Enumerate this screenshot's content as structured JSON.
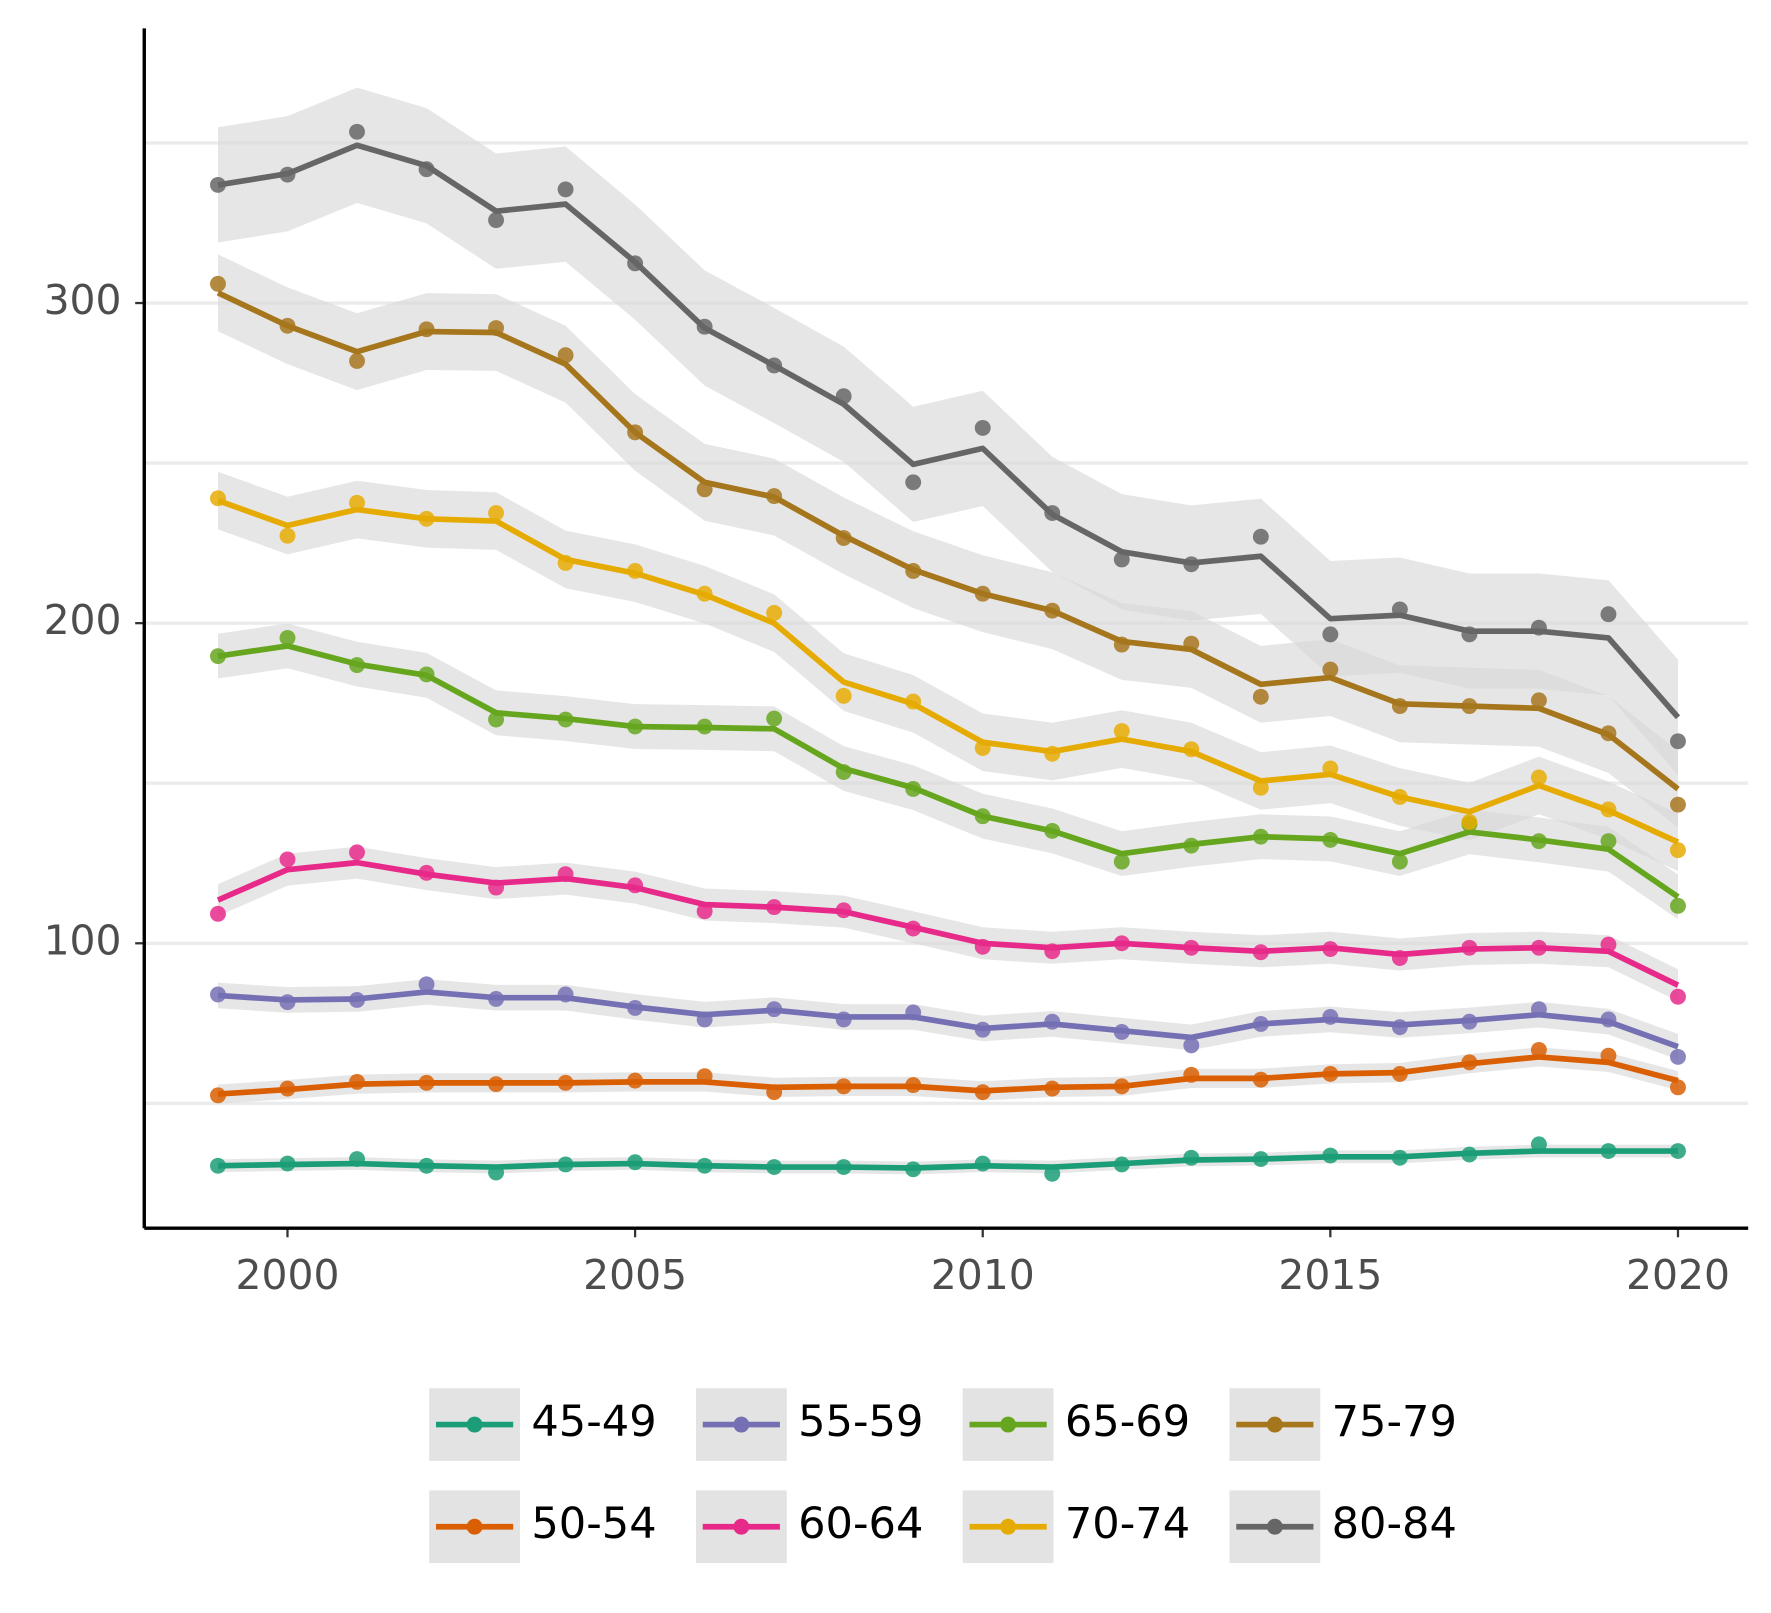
{
  "chart_data": {
    "type": "line",
    "x": [
      1999,
      2000,
      2001,
      2002,
      2003,
      2004,
      2005,
      2006,
      2007,
      2008,
      2009,
      2010,
      2011,
      2012,
      2013,
      2014,
      2015,
      2016,
      2017,
      2018,
      2019,
      2020
    ],
    "xlim": [
      1997.94,
      2021.01
    ],
    "xticks": [
      2000,
      2005,
      2010,
      2015,
      2020
    ],
    "ylim": [
      11,
      385.8
    ],
    "yticks": [
      100,
      200,
      300
    ],
    "yminorticks": [
      50,
      150,
      250,
      350
    ],
    "grid": true,
    "legend": "bottom",
    "series": [
      {
        "name": "45-49",
        "color": "#1b9e77",
        "se": 2,
        "values": [
          30.5,
          30.9,
          31.2,
          30.5,
          30.1,
          30.9,
          31.2,
          30.5,
          30.1,
          30.1,
          29.8,
          30.5,
          30.1,
          31.2,
          32.3,
          32.6,
          33.3,
          33.3,
          34.4,
          35.1,
          35.1,
          35.1
        ],
        "points": [
          30.5,
          31.2,
          32.6,
          30.5,
          28.4,
          30.9,
          31.6,
          30.5,
          30.1,
          30.1,
          29.4,
          31.2,
          28.0,
          30.9,
          33.0,
          32.6,
          33.7,
          33.0,
          34.0,
          37.2,
          35.1,
          35.1
        ]
      },
      {
        "name": "50-54",
        "color": "#d95f02",
        "se": 3,
        "values": [
          52.9,
          54.3,
          56.0,
          56.4,
          56.4,
          56.4,
          56.7,
          56.7,
          55.0,
          55.3,
          55.3,
          53.9,
          55.0,
          55.3,
          57.8,
          57.8,
          59.2,
          59.6,
          62.4,
          64.5,
          62.8,
          57.1
        ],
        "points": [
          52.5,
          54.6,
          56.7,
          56.4,
          56.0,
          56.4,
          57.1,
          58.5,
          53.5,
          55.3,
          55.7,
          53.5,
          54.6,
          55.3,
          58.9,
          57.4,
          59.2,
          59.2,
          62.8,
          66.7,
          64.9,
          55.0
        ]
      },
      {
        "name": "55-59",
        "color": "#7570b3",
        "se": 4,
        "values": [
          83.7,
          82.3,
          82.6,
          84.8,
          83.0,
          83.0,
          80.1,
          77.7,
          79.1,
          77.0,
          77.0,
          73.4,
          74.8,
          72.7,
          70.6,
          74.8,
          76.2,
          74.5,
          75.9,
          77.7,
          75.5,
          67.7
        ],
        "points": [
          84.0,
          81.6,
          82.3,
          87.2,
          82.6,
          84.0,
          79.8,
          76.2,
          79.4,
          76.2,
          78.4,
          73.0,
          75.5,
          72.3,
          68.1,
          74.8,
          77.0,
          73.8,
          75.5,
          79.4,
          76.2,
          64.5
        ]
      },
      {
        "name": "60-64",
        "color": "#e7298a",
        "se": 5,
        "values": [
          113.5,
          123.0,
          125.2,
          121.6,
          118.8,
          120.2,
          117.4,
          112.1,
          111.3,
          109.9,
          105.0,
          100.0,
          98.6,
          100.0,
          98.6,
          97.5,
          98.6,
          96.5,
          98.2,
          98.6,
          97.5,
          86.9
        ],
        "points": [
          109.2,
          126.2,
          128.4,
          122.0,
          117.4,
          121.6,
          118.1,
          110.0,
          111.3,
          110.3,
          104.6,
          98.9,
          97.5,
          100.0,
          98.6,
          97.2,
          98.2,
          95.4,
          98.6,
          98.6,
          99.6,
          83.3
        ]
      },
      {
        "name": "65-69",
        "color": "#66a61e",
        "se": 7,
        "values": [
          189.7,
          192.9,
          187.2,
          183.7,
          172.0,
          170.2,
          167.7,
          167.4,
          167.0,
          154.6,
          148.6,
          139.7,
          135.1,
          128.0,
          130.9,
          133.3,
          132.6,
          128.0,
          134.8,
          132.3,
          129.4,
          114.5
        ],
        "points": [
          189.7,
          195.4,
          186.9,
          184.0,
          169.9,
          169.9,
          167.7,
          167.7,
          170.2,
          153.5,
          148.2,
          139.7,
          135.1,
          125.5,
          130.5,
          133.3,
          132.3,
          125.5,
          137.2,
          131.9,
          131.9,
          111.7
        ]
      },
      {
        "name": "70-74",
        "color": "#e6ab02",
        "se": 9,
        "values": [
          238.3,
          230.5,
          235.5,
          232.6,
          231.9,
          219.9,
          215.6,
          208.9,
          200.0,
          181.6,
          174.8,
          162.8,
          159.9,
          163.8,
          159.9,
          150.7,
          152.8,
          145.7,
          141.1,
          149.3,
          141.5,
          131.6
        ],
        "points": [
          239.0,
          227.3,
          237.6,
          232.6,
          234.4,
          218.8,
          216.3,
          209.2,
          203.2,
          177.3,
          175.5,
          161.0,
          159.2,
          166.3,
          160.6,
          148.6,
          154.6,
          145.7,
          137.9,
          151.8,
          141.8,
          129.1
        ]
      },
      {
        "name": "75-79",
        "color": "#a6761d",
        "se": 12,
        "values": [
          303.2,
          292.9,
          284.8,
          291.1,
          290.8,
          280.9,
          259.6,
          244.0,
          239.4,
          227.3,
          216.7,
          209.2,
          203.9,
          194.3,
          191.8,
          180.9,
          183.0,
          174.8,
          174.1,
          173.4,
          165.2,
          148.2
        ],
        "points": [
          306.0,
          292.9,
          281.9,
          291.8,
          292.2,
          283.7,
          259.6,
          241.8,
          239.7,
          226.6,
          216.3,
          209.2,
          203.9,
          193.3,
          193.6,
          177.0,
          185.5,
          174.1,
          174.1,
          175.9,
          165.6,
          143.3
        ]
      },
      {
        "name": "80-84",
        "color": "#666666",
        "se": 18,
        "values": [
          336.9,
          340.4,
          349.3,
          342.9,
          328.7,
          330.9,
          312.8,
          292.2,
          280.5,
          268.4,
          249.6,
          254.6,
          234.0,
          222.3,
          218.8,
          220.9,
          201.4,
          202.5,
          197.5,
          197.5,
          195.4,
          170.6
        ],
        "points": [
          336.9,
          340.1,
          353.5,
          341.8,
          325.9,
          335.5,
          312.4,
          292.6,
          280.5,
          270.9,
          244.0,
          261.0,
          234.4,
          219.9,
          218.4,
          227.0,
          196.5,
          204.3,
          196.5,
          198.6,
          202.8,
          163.1
        ]
      }
    ]
  }
}
